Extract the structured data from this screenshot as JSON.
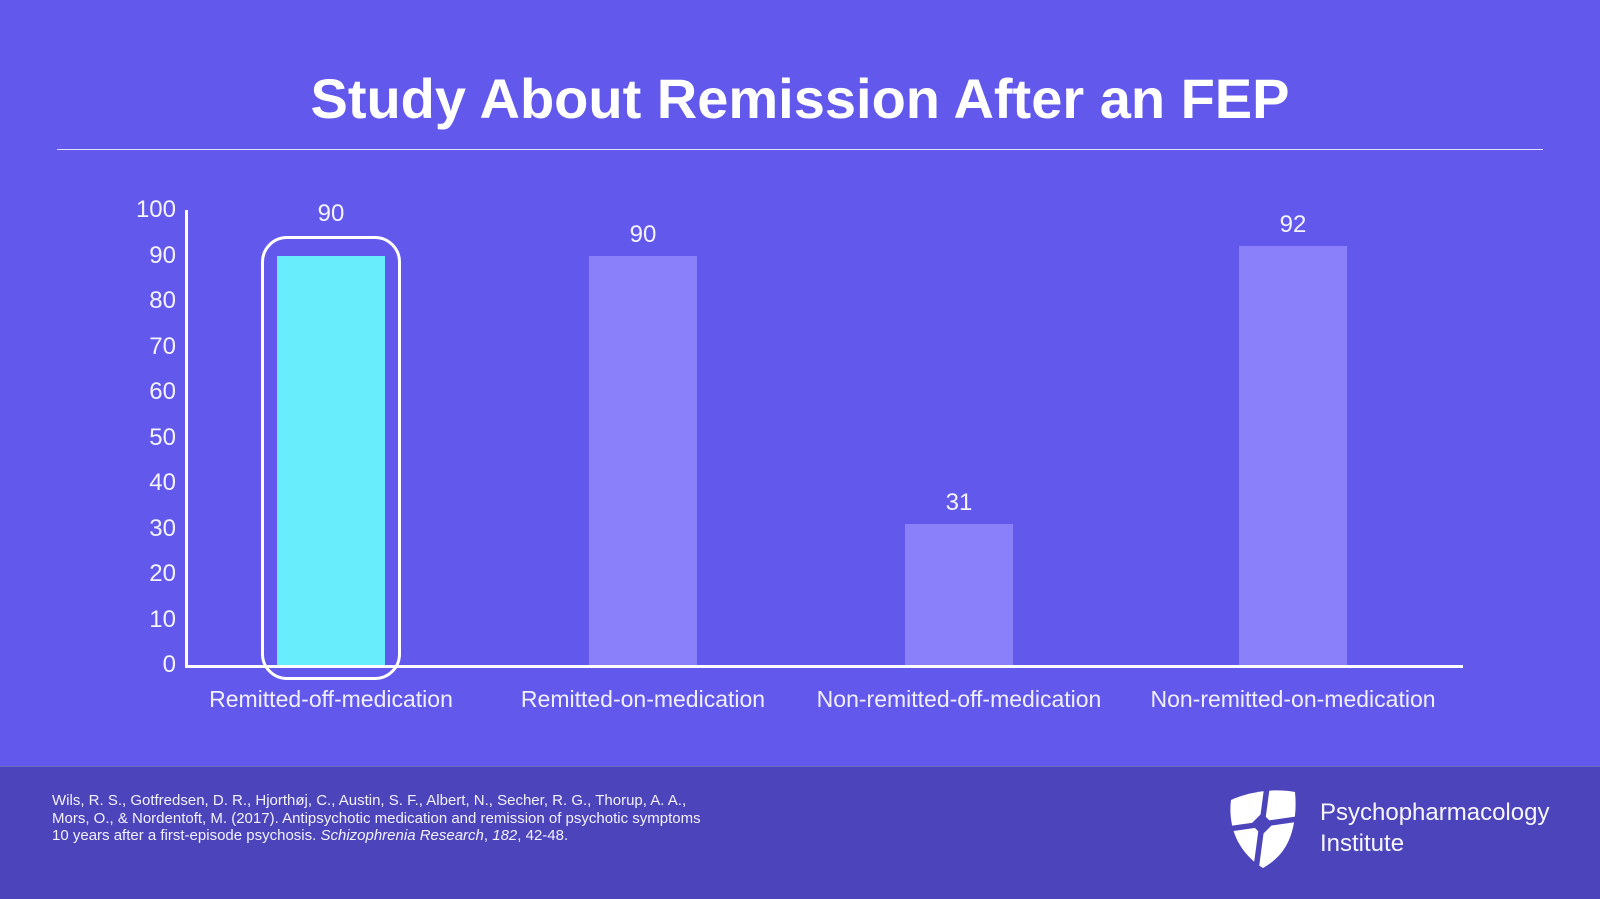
{
  "title": "Study About Remission After an FEP",
  "chart_data": {
    "type": "bar",
    "title": "Study About Remission After an FEP",
    "categories": [
      "Remitted-off-medication",
      "Remitted-on-medication",
      "Non-remitted-off-medication",
      "Non-remitted-on-medication"
    ],
    "values": [
      90,
      90,
      31,
      92
    ],
    "data_labels": [
      "90",
      "90",
      "31",
      "92"
    ],
    "yticks": [
      0,
      10,
      20,
      30,
      40,
      50,
      60,
      70,
      80,
      90,
      100
    ],
    "ylim": [
      0,
      100
    ],
    "xlabel": "",
    "ylabel": "",
    "grid": false,
    "legend": "none",
    "bar_color": "#8A80FA",
    "highlighted_index": 0,
    "highlighted_bar_color": "#67EDFB",
    "highlight_outline_color": "#FFFFFF",
    "axis_color": "#FDFDFF"
  },
  "footer": {
    "citation": {
      "line1": "Wils, R. S., Gotfredsen, D. R., Hjorthøj, C., Austin, S. F., Albert, N., Secher, R. G., Thorup, A. A.,",
      "line2": "Mors, O., & Nordentoft, M. (2017). Antipsychotic medication and remission of psychotic symptoms",
      "line3_prefix": "10 years after a first-episode psychosis. ",
      "journal": "Schizophrenia Research",
      "comma": ", ",
      "volume": "182",
      "line3_suffix": ", 42-48."
    },
    "brand": {
      "logo_icon": "shield-cross-icon",
      "name_line1": "Psychopharmacology",
      "name_line2": "Institute"
    }
  },
  "colors": {
    "background": "#6259EC",
    "footer_background": "#4C44BB",
    "bar": "#8A80FA",
    "highlight_bar": "#67EDFB",
    "text": "#FFFFFF"
  }
}
